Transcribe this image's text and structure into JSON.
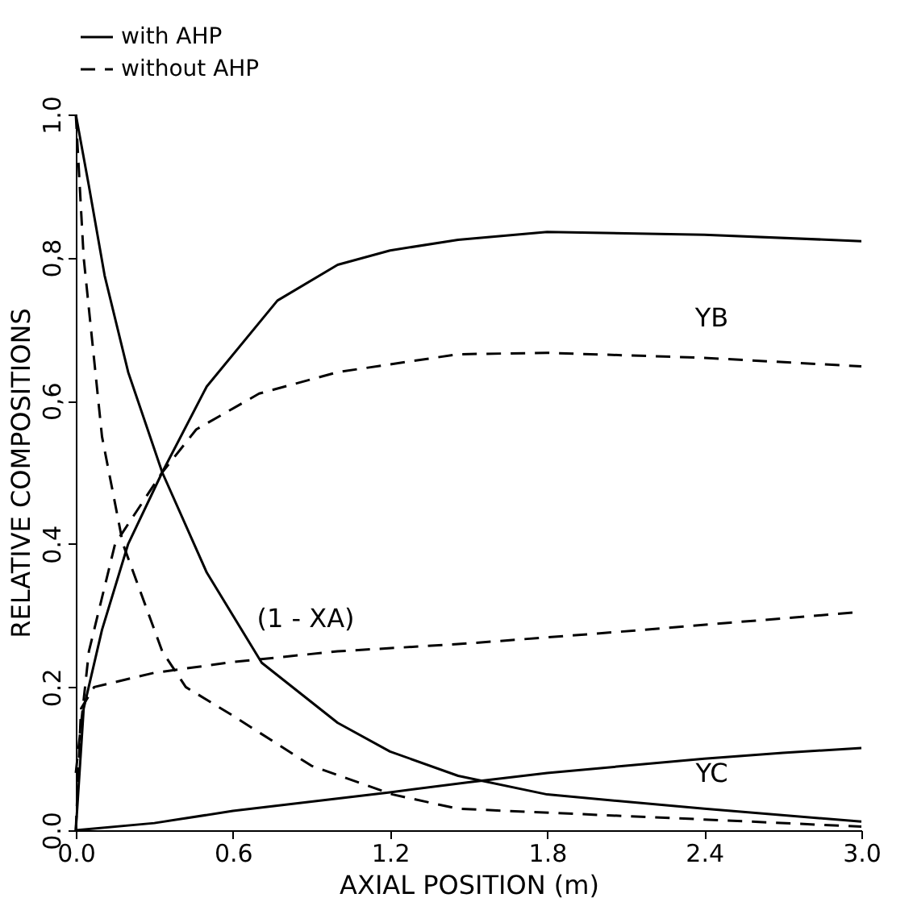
{
  "chart_data": {
    "type": "line",
    "xlabel": "AXIAL POSITION  (m)",
    "ylabel": "RELATIVE COMPOSITIONS",
    "xlim": [
      0,
      3.0
    ],
    "ylim": [
      0,
      1.0
    ],
    "xticks": [
      {
        "value": 0,
        "label": "0.0"
      },
      0.6,
      1.2,
      1.8,
      2.4,
      {
        "value": 3,
        "label": "3.0"
      }
    ],
    "yticks": [
      {
        "value": 0,
        "label": "0.0"
      },
      0.2,
      0.4,
      {
        "value": 0.6,
        "label": "0,6"
      },
      {
        "value": 0.8,
        "label": "0,8"
      },
      {
        "value": 1,
        "label": "1.0"
      }
    ],
    "grid": false,
    "legend": "top",
    "marker": "none",
    "annotations": [
      "(1 - XA)",
      "YB",
      "YC"
    ],
    "series": [
      {
        "name": "with AHP",
        "color": "#000000",
        "line_style": "solid",
        "x": [
          0,
          0.05,
          0.11,
          0.2,
          0.33,
          0.5,
          0.71,
          1.0,
          1.2,
          1.46,
          1.8,
          2.1,
          2.4,
          3.0
        ],
        "values": [
          1.0,
          0.9,
          0.775,
          0.64,
          0.5,
          0.36,
          0.234,
          0.15,
          0.11,
          0.076,
          0.05,
          0.04,
          0.03,
          0.012
        ]
      },
      {
        "name": "without AHP",
        "color": "#000000",
        "line_style": "dashed",
        "x": [
          0,
          0.03,
          0.1,
          0.18,
          0.33,
          0.42,
          0.6,
          0.9,
          1.21,
          1.46,
          2.4,
          3.0
        ],
        "values": [
          1.0,
          0.8,
          0.55,
          0.4,
          0.25,
          0.2,
          0.16,
          0.09,
          0.05,
          0.03,
          0.015,
          0.005
        ]
      },
      {
        "color": "#000000",
        "line_style": "solid",
        "x": [
          0,
          0.03,
          0.1,
          0.2,
          0.33,
          0.5,
          0.77,
          1.0,
          1.2,
          1.46,
          1.8,
          2.4,
          3.0
        ],
        "values": [
          0,
          0.17,
          0.28,
          0.4,
          0.5,
          0.62,
          0.74,
          0.79,
          0.81,
          0.825,
          0.836,
          0.832,
          0.823
        ]
      },
      {
        "color": "#000000",
        "line_style": "dashed",
        "x": [
          0,
          0.05,
          0.15,
          0.33,
          0.46,
          0.7,
          1.0,
          1.46,
          1.8,
          2.4,
          3.0
        ],
        "values": [
          0.08,
          0.25,
          0.4,
          0.5,
          0.56,
          0.61,
          0.64,
          0.665,
          0.667,
          0.66,
          0.648
        ]
      },
      {
        "color": "#000000",
        "line_style": "dashed",
        "x": [
          0,
          0.02,
          0.07,
          0.3,
          0.6,
          1.0,
          1.46,
          2.0,
          2.5,
          3.0
        ],
        "values": [
          0,
          0.17,
          0.2,
          0.22,
          0.235,
          0.25,
          0.26,
          0.275,
          0.29,
          0.305
        ]
      },
      {
        "color": "#000000",
        "line_style": "solid",
        "x": [
          0,
          0.3,
          0.6,
          0.9,
          1.2,
          1.5,
          1.8,
          2.1,
          2.4,
          2.7,
          3.0
        ],
        "values": [
          0,
          0.01,
          0.027,
          0.04,
          0.053,
          0.067,
          0.08,
          0.09,
          0.1,
          0.108,
          0.115
        ]
      }
    ]
  }
}
